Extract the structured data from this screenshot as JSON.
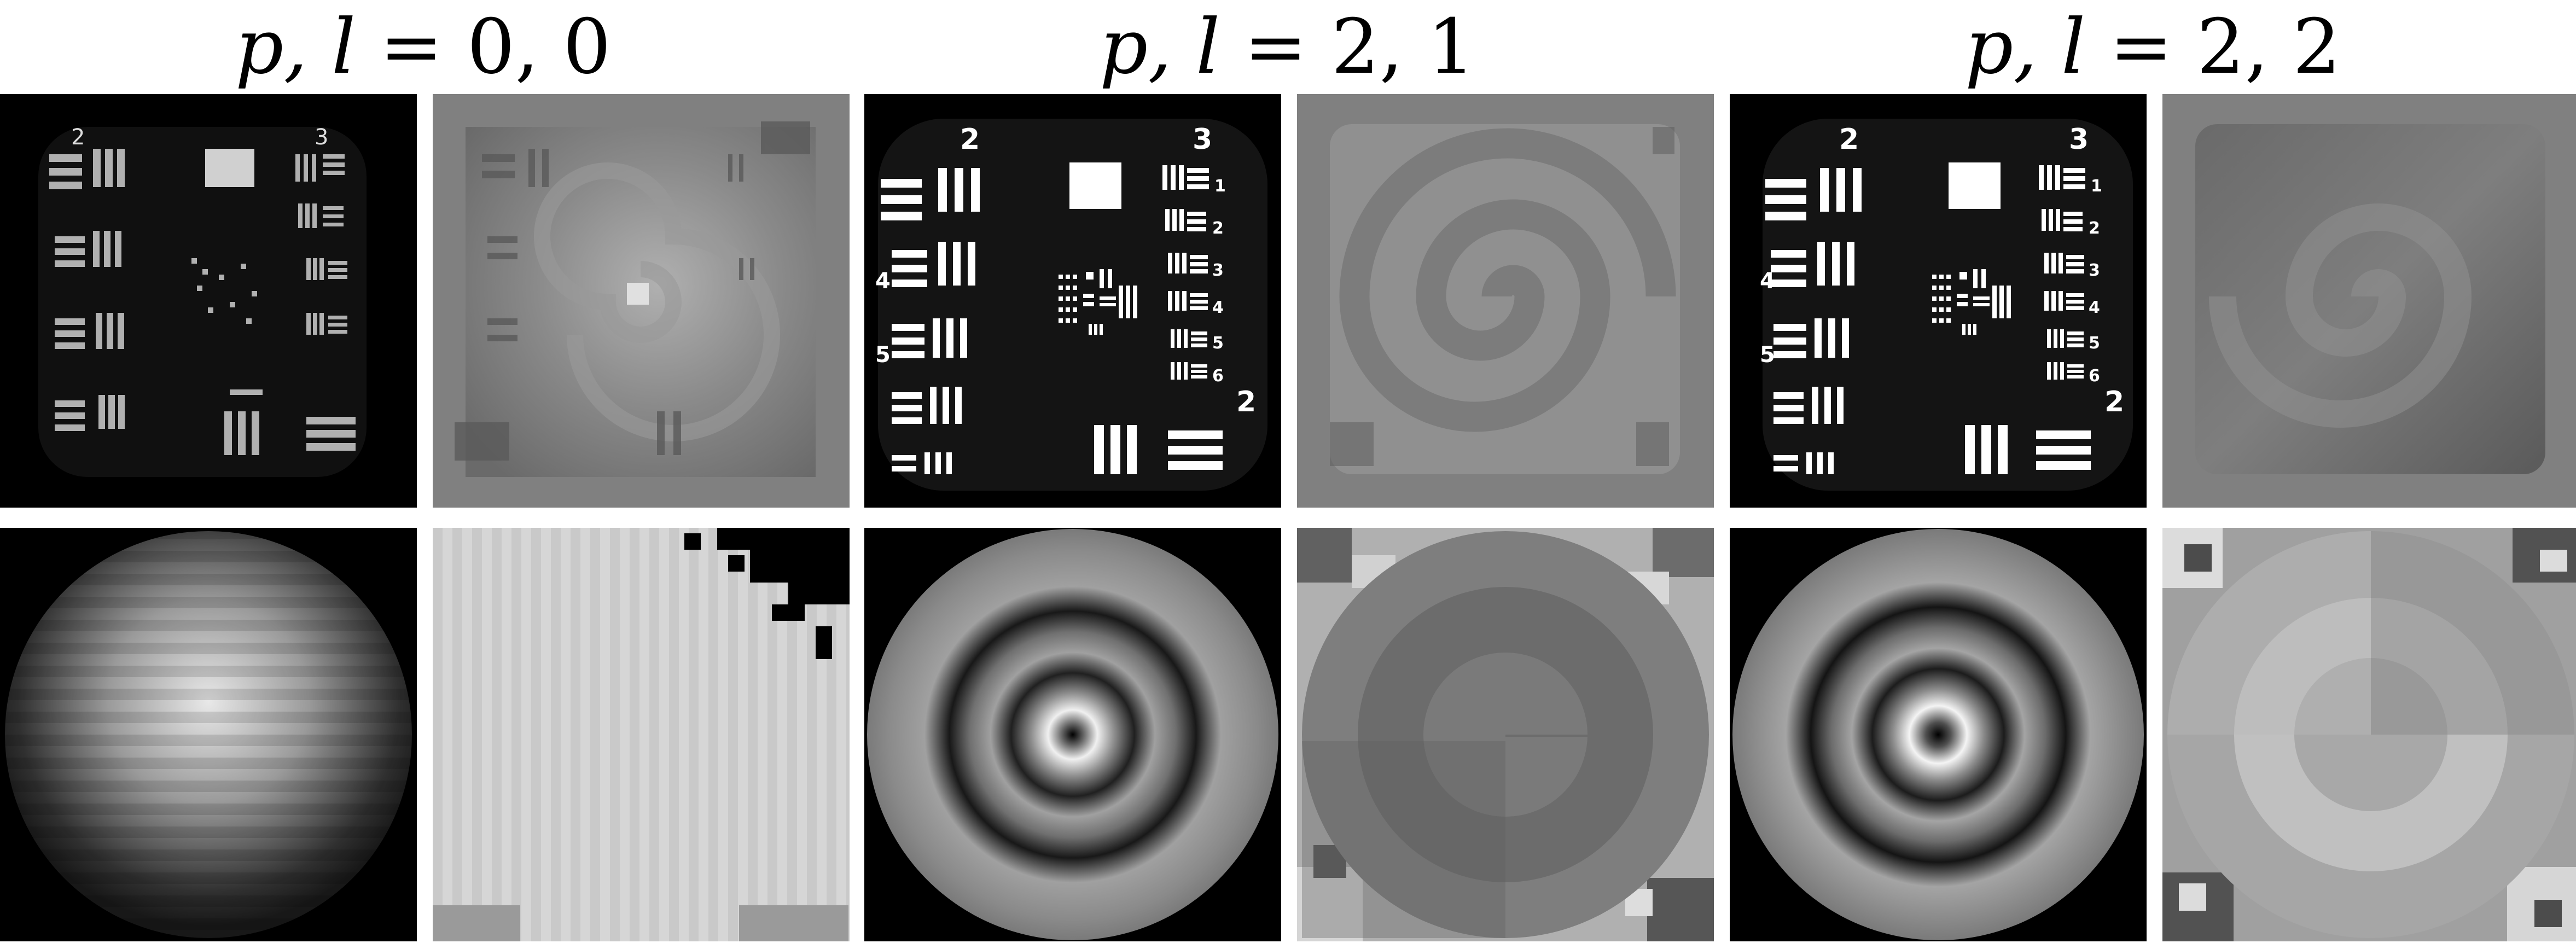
{
  "columns": [
    {
      "title_italic": "p, l",
      "title_rest": " = 0, 0"
    },
    {
      "title_italic": "p, l",
      "title_rest": " = 2, 1"
    },
    {
      "title_italic": "p, l",
      "title_rest": " = 2, 2"
    }
  ],
  "target_labels": {
    "col0": [
      "2",
      "3"
    ],
    "col1": [
      "2",
      "3",
      "1",
      "2",
      "3",
      "4",
      "5",
      "6",
      "2",
      "4",
      "5"
    ],
    "col2": [
      "2",
      "3",
      "1",
      "2",
      "3",
      "4",
      "5",
      "6",
      "2",
      "4",
      "5"
    ]
  },
  "colors": {
    "background": "#ffffff",
    "panel_black": "#000000",
    "panel_gray": "#808080"
  }
}
